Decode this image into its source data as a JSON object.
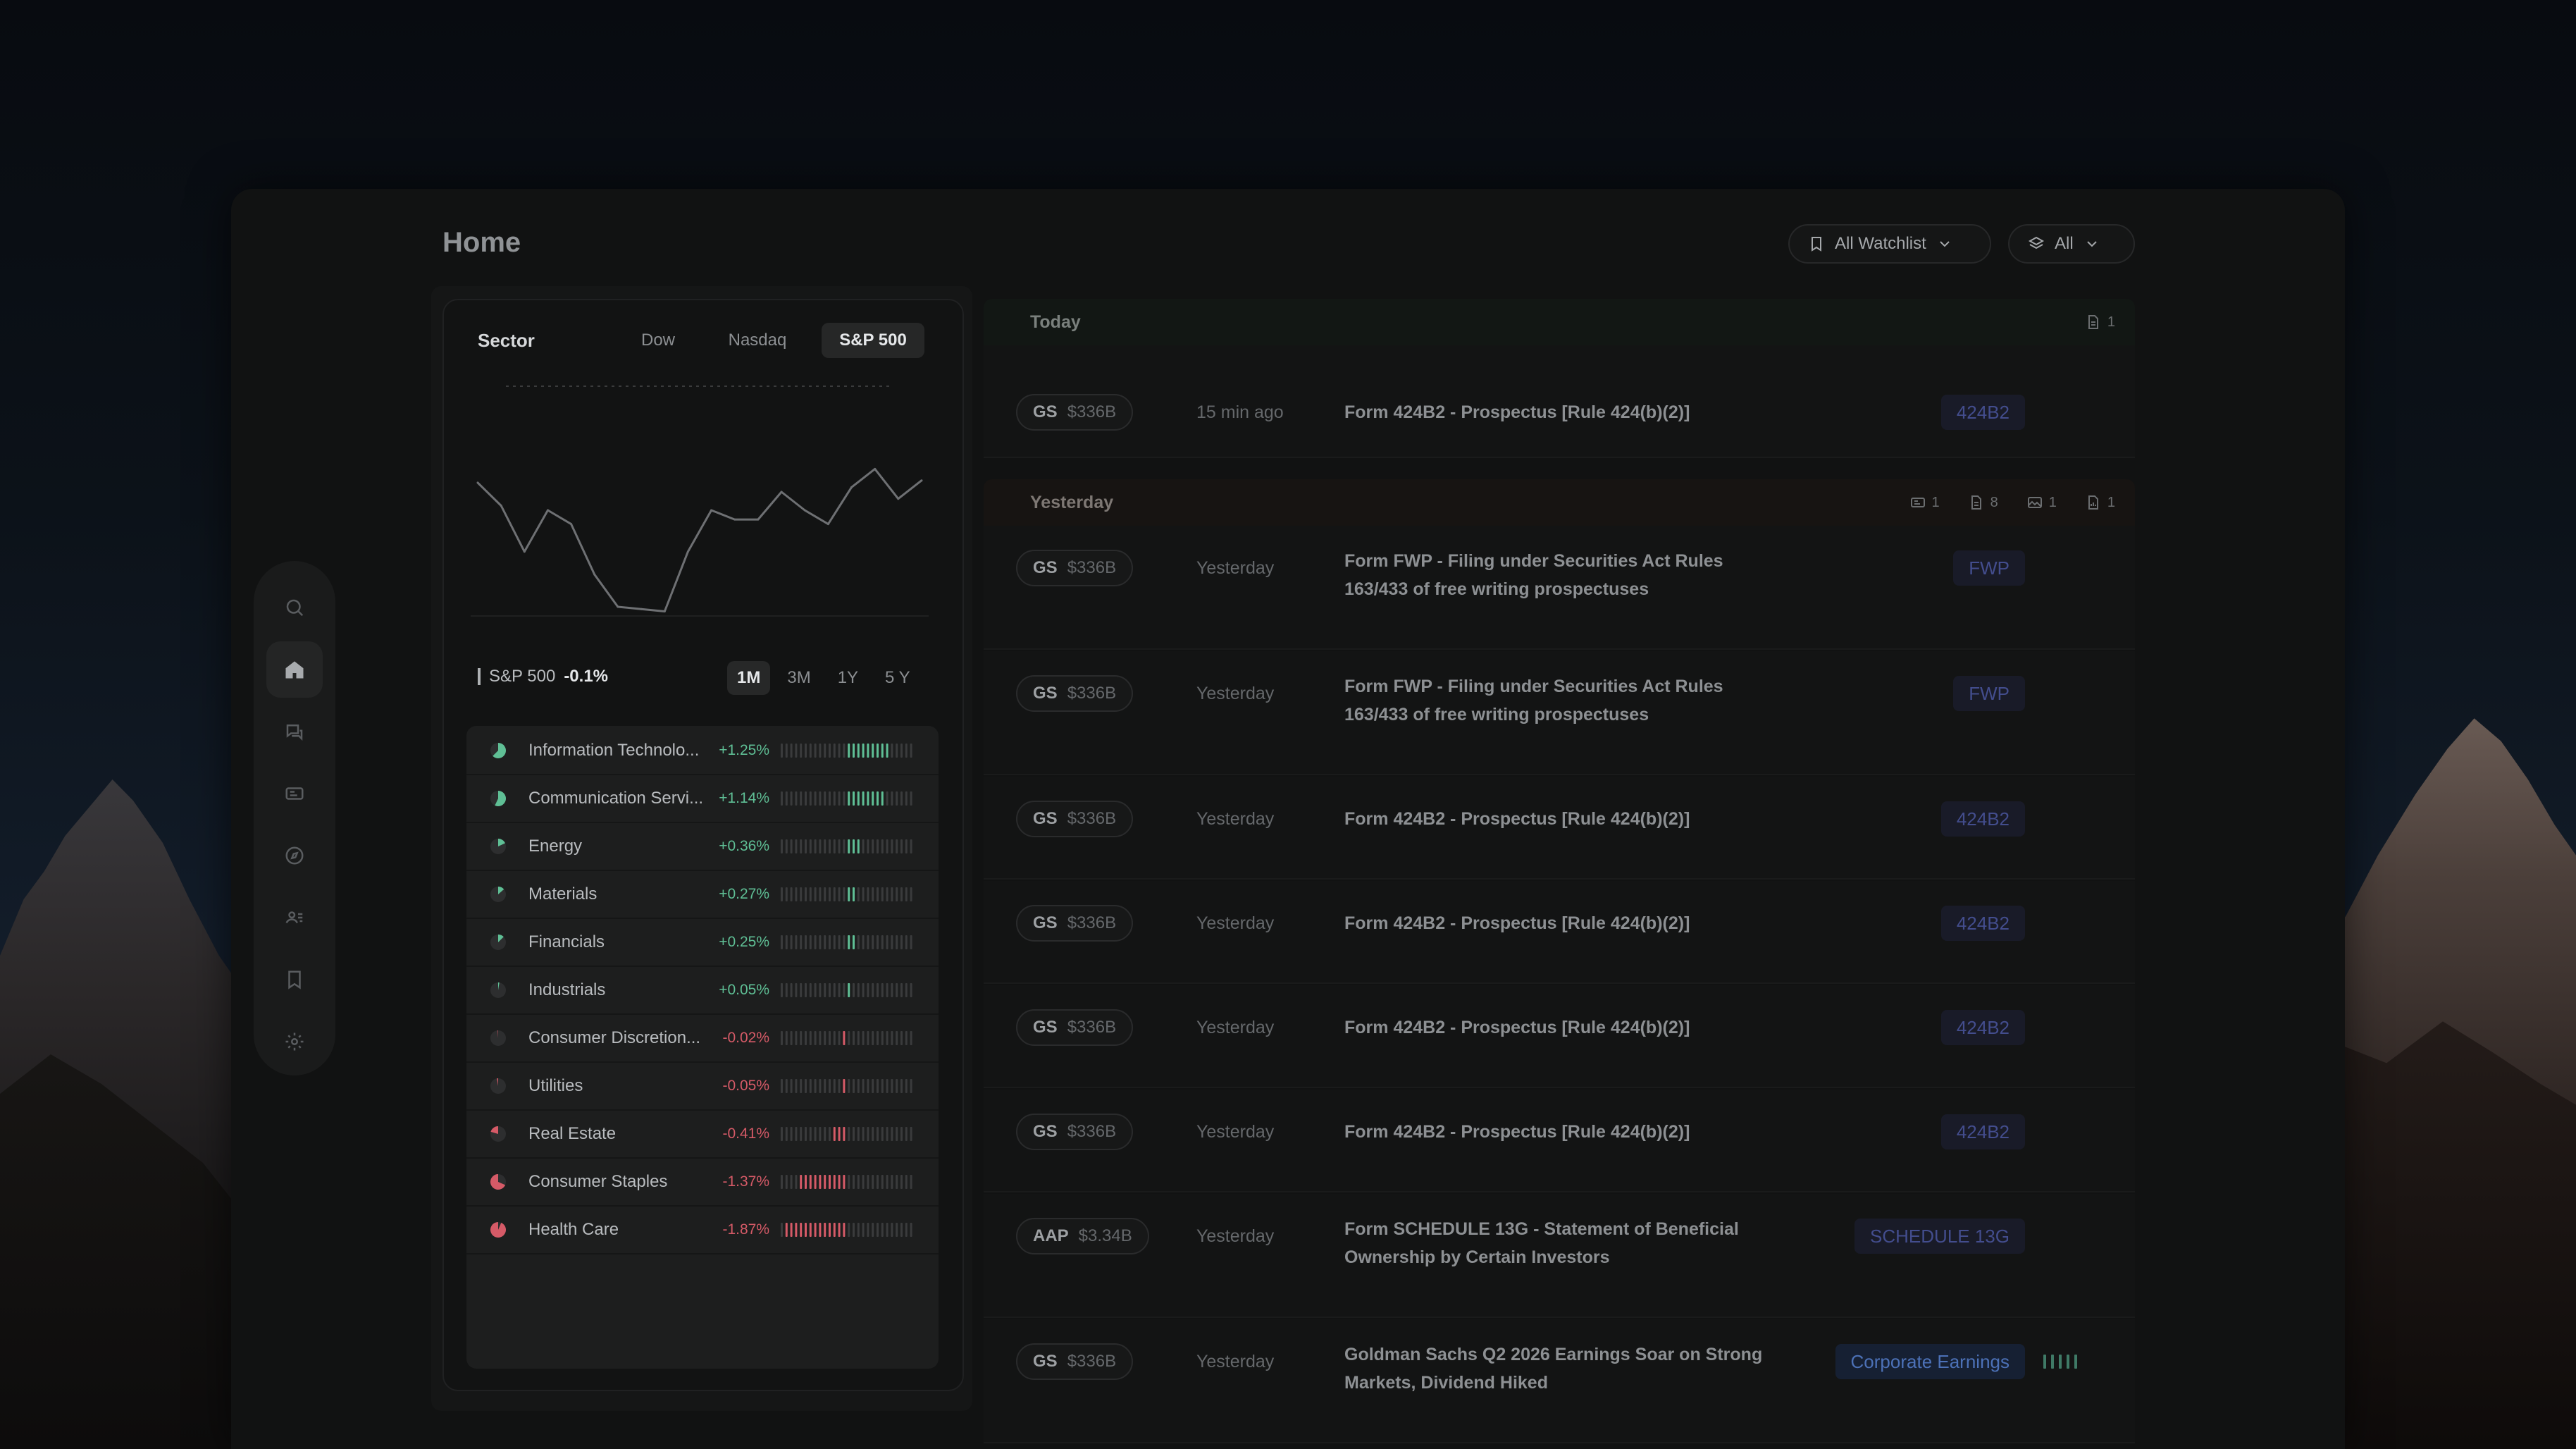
{
  "page": {
    "title": "Home"
  },
  "filters": {
    "watchlist": "All Watchlist",
    "type": "All"
  },
  "sidebar": {
    "items": [
      {
        "name": "search",
        "icon": "search-icon"
      },
      {
        "name": "home",
        "icon": "home-icon",
        "active": true
      },
      {
        "name": "chat",
        "icon": "chat-icon"
      },
      {
        "name": "news",
        "icon": "news-icon"
      },
      {
        "name": "explore",
        "icon": "compass-icon"
      },
      {
        "name": "contacts",
        "icon": "contacts-icon"
      },
      {
        "name": "bookmarks",
        "icon": "bookmark-icon"
      },
      {
        "name": "settings",
        "icon": "gear-icon"
      }
    ]
  },
  "sector_panel": {
    "label": "Sector",
    "index_tabs": [
      "Dow",
      "Nasdaq",
      "S&P 500"
    ],
    "active_index": "S&P 500",
    "metric_name": "S&P 500",
    "metric_change": "-0.1%",
    "range_tabs": [
      "1M",
      "3M",
      "1Y",
      "5 Y"
    ],
    "active_range": "1M",
    "sectors": [
      {
        "name": "Information Technolo...",
        "change": "+1.25%",
        "value": 1.25
      },
      {
        "name": "Communication Servi...",
        "change": "+1.14%",
        "value": 1.14
      },
      {
        "name": "Energy",
        "change": "+0.36%",
        "value": 0.36
      },
      {
        "name": "Materials",
        "change": "+0.27%",
        "value": 0.27
      },
      {
        "name": "Financials",
        "change": "+0.25%",
        "value": 0.25
      },
      {
        "name": "Industrials",
        "change": "+0.05%",
        "value": 0.05
      },
      {
        "name": "Consumer Discretion...",
        "change": "-0.02%",
        "value": -0.02
      },
      {
        "name": "Utilities",
        "change": "-0.05%",
        "value": -0.05
      },
      {
        "name": "Real Estate",
        "change": "-0.41%",
        "value": -0.41
      },
      {
        "name": "Consumer Staples",
        "change": "-1.37%",
        "value": -1.37
      },
      {
        "name": "Health Care",
        "change": "-1.87%",
        "value": -1.87
      }
    ]
  },
  "chart_data": {
    "type": "line",
    "title": "",
    "xlabel": "",
    "ylabel": "",
    "series": [
      {
        "values": [
          58,
          48,
          28,
          46,
          40,
          18,
          4,
          3,
          2,
          28,
          46,
          42,
          42,
          54,
          46,
          40,
          56,
          64,
          51,
          59
        ]
      }
    ],
    "ylim": [
      0,
      100
    ],
    "grid": false
  },
  "colors": {
    "positive": "#5fbf95",
    "negative": "#d55a67",
    "tag": "#434d8d",
    "earnings_tag": "#4c71b7"
  },
  "feed": {
    "today": {
      "label": "Today",
      "counts": [
        {
          "icon": "document-icon",
          "count": "1"
        }
      ]
    },
    "yesterday": {
      "label": "Yesterday",
      "counts": [
        {
          "icon": "news-icon",
          "count": "1"
        },
        {
          "icon": "document-icon",
          "count": "8"
        },
        {
          "icon": "image-icon",
          "count": "1"
        },
        {
          "icon": "file-chart-icon",
          "count": "1"
        }
      ]
    },
    "items": [
      {
        "ticker": "GS",
        "cap": "$336B",
        "time": "15 min ago",
        "title": "Form 424B2 - Prospectus [Rule 424(b)(2)]",
        "tag": "424B2"
      },
      {
        "ticker": "GS",
        "cap": "$336B",
        "time": "Yesterday",
        "title": "Form FWP - Filing under Securities Act Rules 163/433 of free writing prospectuses",
        "tag": "FWP"
      },
      {
        "ticker": "GS",
        "cap": "$336B",
        "time": "Yesterday",
        "title": "Form FWP - Filing under Securities Act Rules 163/433 of free writing prospectuses",
        "tag": "FWP"
      },
      {
        "ticker": "GS",
        "cap": "$336B",
        "time": "Yesterday",
        "title": "Form 424B2 - Prospectus [Rule 424(b)(2)]",
        "tag": "424B2"
      },
      {
        "ticker": "GS",
        "cap": "$336B",
        "time": "Yesterday",
        "title": "Form 424B2 - Prospectus [Rule 424(b)(2)]",
        "tag": "424B2"
      },
      {
        "ticker": "GS",
        "cap": "$336B",
        "time": "Yesterday",
        "title": "Form 424B2 - Prospectus [Rule 424(b)(2)]",
        "tag": "424B2"
      },
      {
        "ticker": "GS",
        "cap": "$336B",
        "time": "Yesterday",
        "title": "Form 424B2 - Prospectus [Rule 424(b)(2)]",
        "tag": "424B2"
      },
      {
        "ticker": "AAP",
        "cap": "$3.34B",
        "time": "Yesterday",
        "title": "Form SCHEDULE 13G - Statement of Beneficial Ownership by Certain Investors",
        "tag": "SCHEDULE 13G"
      },
      {
        "ticker": "GS",
        "cap": "$336B",
        "time": "Yesterday",
        "title": "Goldman Sachs Q2 2026 Earnings Soar on Strong Markets, Dividend Hiked",
        "tag": "Corporate Earnings"
      }
    ]
  }
}
